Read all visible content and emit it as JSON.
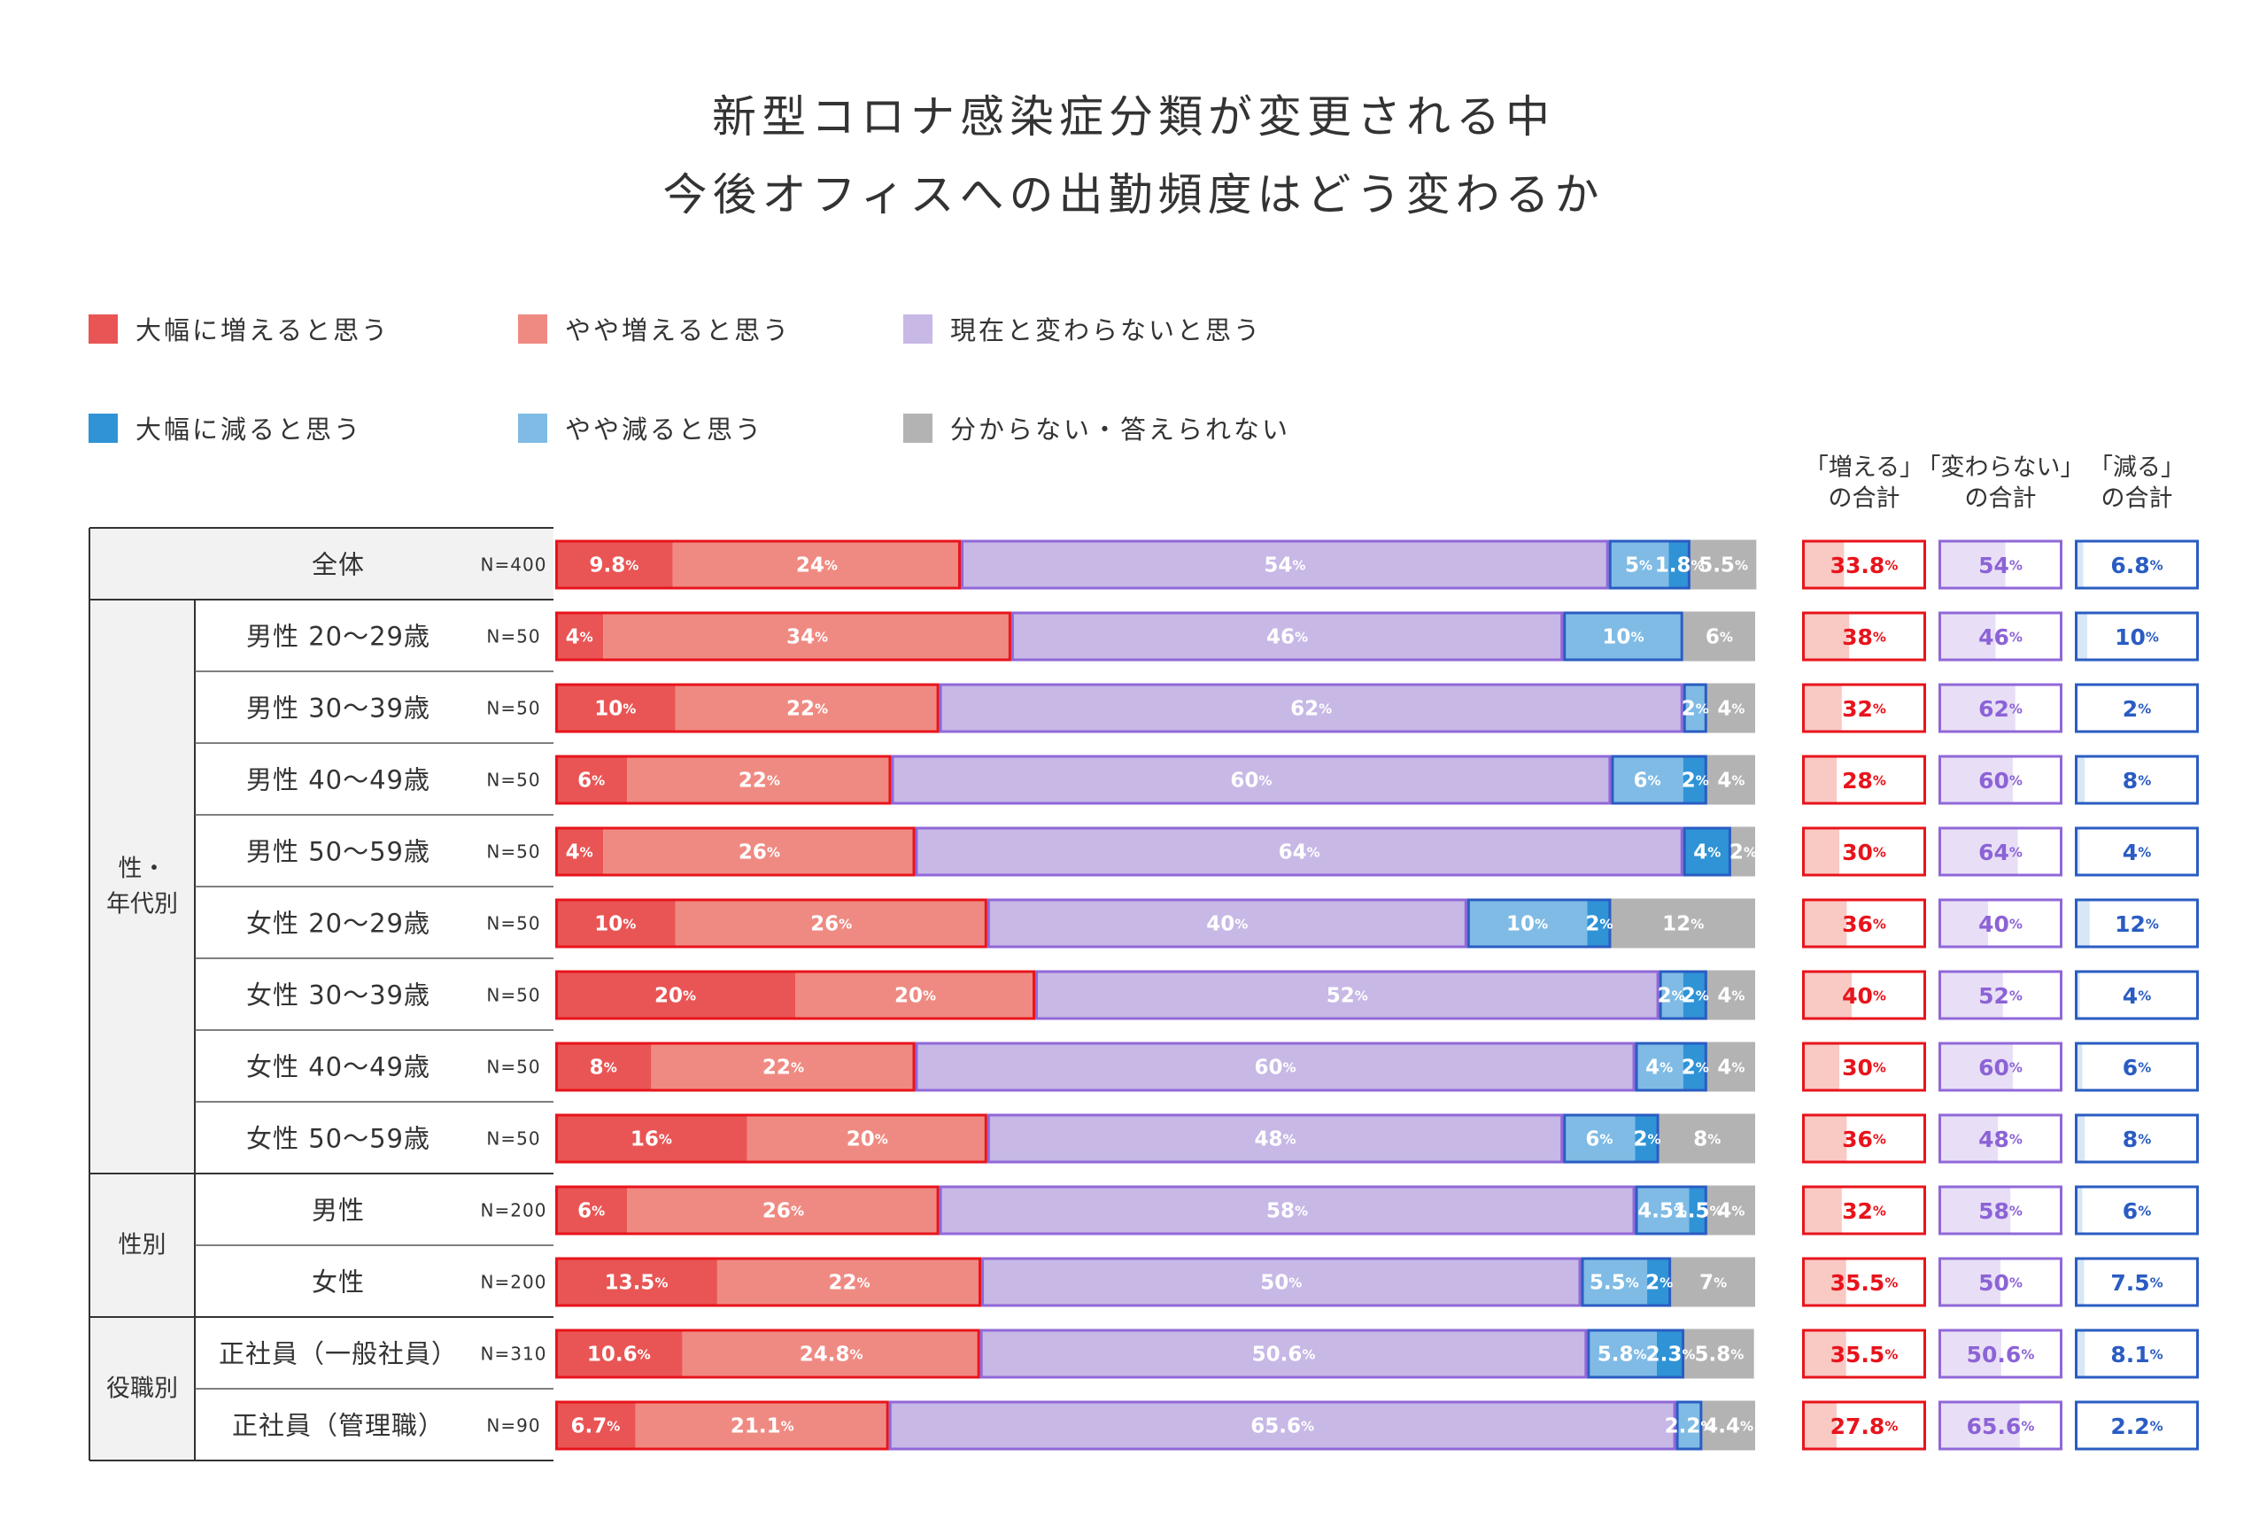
{
  "title_lines": [
    "新型コロナ感染症分類が変更される中",
    "今後オフィスへの出勤頻度はどう変わるか"
  ],
  "colors": {
    "big_increase": "#e95555",
    "small_increase": "#ef8a82",
    "no_change": "#c7b8e6",
    "big_decrease": "#2f93d6",
    "small_decrease": "#7fbbe5",
    "unknown": "#b3b3b3",
    "increase_border": "#e8141c",
    "no_change_border": "#9068d8",
    "decrease_border": "#2a5cc2",
    "increase_sum_text": "#e8141c",
    "no_change_sum_text": "#8c63d6",
    "decrease_sum_text": "#2a5cc2"
  },
  "legend": [
    {
      "key": "big_increase",
      "label": "大幅に増えると思う"
    },
    {
      "key": "small_increase",
      "label": "やや増えると思う"
    },
    {
      "key": "no_change",
      "label": "現在と変わらないと思う"
    },
    {
      "key": "big_decrease",
      "label": "大幅に減ると思う"
    },
    {
      "key": "small_decrease",
      "label": "やや減ると思う"
    },
    {
      "key": "unknown",
      "label": "分からない・答えられない"
    }
  ],
  "summary_headers": [
    [
      "「増える」",
      "の合計"
    ],
    [
      "「変わらない」",
      "の合計"
    ],
    [
      "「減る」",
      "の合計"
    ]
  ],
  "groups": [
    {
      "label": "",
      "rows": [
        0
      ]
    },
    {
      "label": "性・\n年代別",
      "rows": [
        1,
        2,
        3,
        4,
        5,
        6,
        7,
        8
      ]
    },
    {
      "label": "性別",
      "rows": [
        9,
        10
      ]
    },
    {
      "label": "役職別",
      "rows": [
        11,
        12
      ]
    }
  ],
  "chart_data": {
    "type": "bar",
    "orientation": "horizontal",
    "stacked": true,
    "x_unit": "%",
    "xlim": [
      0,
      100
    ],
    "categories": [
      "全体",
      "男性 20〜29歳",
      "男性 30〜39歳",
      "男性 40〜49歳",
      "男性 50〜59歳",
      "女性 20〜29歳",
      "女性 30〜39歳",
      "女性 40〜49歳",
      "女性 50〜59歳",
      "男性",
      "女性",
      "正社員（一般社員）",
      "正社員（管理職）"
    ],
    "n_labels": [
      "N=400",
      "N=50",
      "N=50",
      "N=50",
      "N=50",
      "N=50",
      "N=50",
      "N=50",
      "N=50",
      "N=200",
      "N=200",
      "N=310",
      "N=90"
    ],
    "series": [
      {
        "name": "大幅に増えると思う",
        "key": "big_increase",
        "values": [
          9.8,
          4,
          10,
          6,
          4,
          10,
          20,
          8,
          16,
          6,
          13.5,
          10.6,
          6.7
        ],
        "labels": [
          "9.8",
          "4",
          "10",
          "6",
          "4",
          "10",
          "20",
          "8",
          "16",
          "6",
          "13.5",
          "10.6",
          "6.7"
        ]
      },
      {
        "name": "やや増えると思う",
        "key": "small_increase",
        "values": [
          24,
          34,
          22,
          22,
          26,
          26,
          20,
          22,
          20,
          26,
          22,
          24.8,
          21.1
        ],
        "labels": [
          "24",
          "34",
          "22",
          "22",
          "26",
          "26",
          "20",
          "22",
          "20",
          "26",
          "22",
          "24.8",
          "21.1"
        ]
      },
      {
        "name": "現在と変わらないと思う",
        "key": "no_change",
        "values": [
          54,
          46,
          62,
          60,
          64,
          40,
          52,
          60,
          48,
          58,
          50,
          50.6,
          65.6
        ],
        "labels": [
          "54",
          "46",
          "62",
          "60",
          "64",
          "40",
          "52",
          "60",
          "48",
          "58",
          "50",
          "50.6",
          "65.6"
        ]
      },
      {
        "name": "やや減ると思う",
        "key": "small_decrease",
        "values": [
          5,
          10,
          2,
          6,
          0,
          10,
          2,
          4,
          6,
          4.5,
          5.5,
          5.8,
          2.2
        ],
        "labels": [
          "5",
          "10",
          "2",
          "6",
          "",
          "10",
          "2",
          "4",
          "6",
          "4.5",
          "5.5",
          "5.8",
          "2.2"
        ]
      },
      {
        "name": "大幅に減ると思う",
        "key": "big_decrease",
        "values": [
          1.8,
          0,
          0,
          2,
          4,
          2,
          2,
          2,
          2,
          1.5,
          2,
          2.3,
          0
        ],
        "labels": [
          "1.8",
          "",
          "",
          "2",
          "4",
          "2",
          "2",
          "2",
          "2",
          "1.5",
          "2",
          "2.3",
          ""
        ]
      },
      {
        "name": "分からない・答えられない",
        "key": "unknown",
        "values": [
          5.5,
          6,
          4,
          4,
          2,
          12,
          4,
          4,
          8,
          4,
          7,
          5.8,
          4.4
        ],
        "labels": [
          "5.5",
          "6",
          "4",
          "4",
          "2",
          "12",
          "4",
          "4",
          "8",
          "4",
          "7",
          "5.8",
          "4.4"
        ]
      }
    ],
    "totals": {
      "increase": {
        "values": [
          33.8,
          38,
          32,
          28,
          30,
          36,
          40,
          30,
          36,
          32,
          35.5,
          35.5,
          27.8
        ],
        "labels": [
          "33.8",
          "38",
          "32",
          "28",
          "30",
          "36",
          "40",
          "30",
          "36",
          "32",
          "35.5",
          "35.5",
          "27.8"
        ]
      },
      "no_change": {
        "values": [
          54,
          46,
          62,
          60,
          64,
          40,
          52,
          60,
          48,
          58,
          50,
          50.6,
          65.6
        ],
        "labels": [
          "54",
          "46",
          "62",
          "60",
          "64",
          "40",
          "52",
          "60",
          "48",
          "58",
          "50",
          "50.6",
          "65.6"
        ]
      },
      "decrease": {
        "values": [
          6.8,
          10,
          2,
          8,
          4,
          12,
          4,
          6,
          8,
          6,
          7.5,
          8.1,
          2.2
        ],
        "labels": [
          "6.8",
          "10",
          "2",
          "8",
          "4",
          "12",
          "4",
          "6",
          "8",
          "6",
          "7.5",
          "8.1",
          "2.2"
        ]
      }
    }
  }
}
